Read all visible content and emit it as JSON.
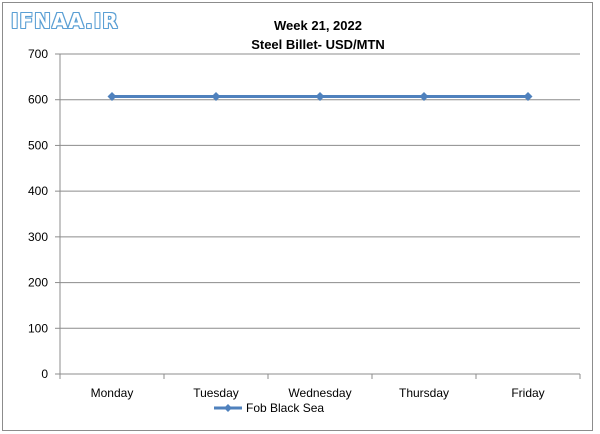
{
  "watermark": "IFNAA.IR",
  "chart_data": {
    "type": "line",
    "title": "Week 21, 2022",
    "subtitle": "Steel Billet- USD/MTN",
    "categories": [
      "Monday",
      "Tuesday",
      "Wednesday",
      "Thursday",
      "Friday"
    ],
    "series": [
      {
        "name": "Fob Black Sea",
        "values": [
          607,
          607,
          607,
          607,
          607
        ],
        "color": "#4f81bd"
      }
    ],
    "yticks": [
      0,
      100,
      200,
      300,
      400,
      500,
      600,
      700
    ],
    "ylim": [
      0,
      700
    ],
    "grid": true,
    "legend_position": "bottom"
  }
}
